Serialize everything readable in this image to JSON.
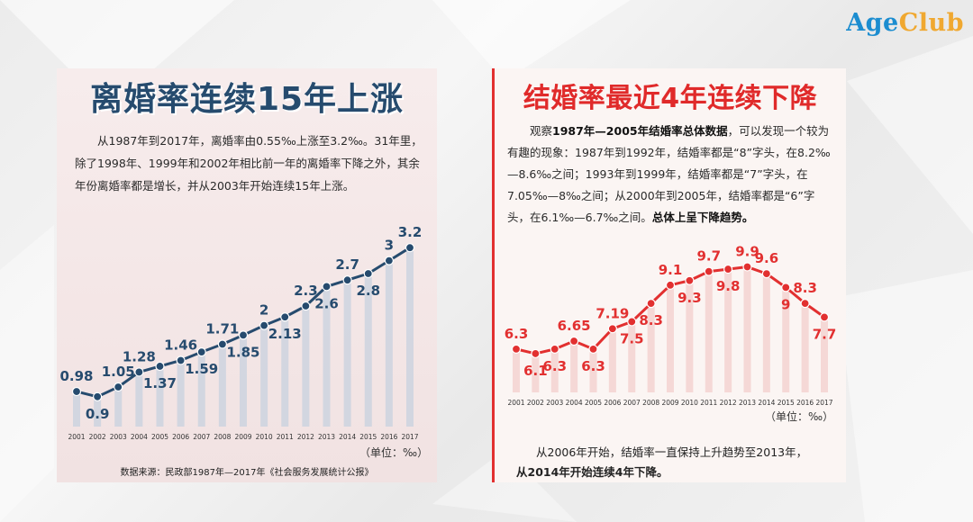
{
  "brand": {
    "part1": "Age",
    "part2": "Club",
    "color1": "#1c8dd0",
    "color2": "#f0a830"
  },
  "left": {
    "title": "离婚率连续15年上涨",
    "paragraph": "从1987年到2017年，离婚率由0.55‰上涨至3.2‰。31年里，除了1998年、1999年和2002年相比前一年的离婚率下降之外，其余年份离婚率都是增长，并从2003年开始连续15年上涨。",
    "unit": "（单位：‰）",
    "source": "数据来源：民政部1987年—2017年《社会服务发展统计公报》"
  },
  "right": {
    "title": "结婚率最近4年连续下降",
    "para_pre": "观察",
    "para_emph1": "1987年—2005年结婚率总体数据",
    "para_mid": "，可以发现一个较为有趣的现象：1987年到1992年，结婚率都是“8”字头，在8.2‰—8.6‰之间；1993年到1999年，结婚率都是“7”字头，在7.05‰—8‰之间；从2000年到2005年，结婚率都是“6”字头，在6.1‰—6.7‰之间。",
    "para_emph2": "总体上呈下降趋势。",
    "unit": "（单位：‰）",
    "foot1": "从2006年开始，结婚率一直保持上升趋势至2013年，",
    "foot2": "从2014年开始连续4年下降。"
  },
  "chart_data": [
    {
      "type": "line",
      "title": "离婚率连续15年上涨",
      "ylabel": "单位：‰",
      "x": [
        "2001",
        "2002",
        "2003",
        "2004",
        "2005",
        "2006",
        "2007",
        "2008",
        "2009",
        "2010",
        "2011",
        "2012",
        "2013",
        "2014",
        "2015",
        "2016",
        "2017"
      ],
      "series": [
        {
          "values": [
            0.98,
            0.9,
            1.05,
            1.28,
            1.37,
            1.46,
            1.59,
            1.71,
            1.85,
            2.0,
            2.13,
            2.3,
            2.6,
            2.7,
            2.8,
            3.0,
            3.2
          ]
        }
      ],
      "labels": [
        "0.98",
        "0.9",
        "1.05",
        "1.28",
        "1.37",
        "1.46",
        "1.59",
        "1.71",
        "1.85",
        "2",
        "2.13",
        "2.3",
        "2.6",
        "2.7",
        "2.8",
        "3",
        "3.2"
      ],
      "ylim": [
        0.8,
        3.3
      ],
      "color": "#264b6e",
      "bar_color": "#cdd3df"
    },
    {
      "type": "line",
      "title": "结婚率最近4年连续下降",
      "ylabel": "单位：‰",
      "x": [
        "2001",
        "2002",
        "2003",
        "2004",
        "2005",
        "2006",
        "2007",
        "2008",
        "2009",
        "2010",
        "2011",
        "2012",
        "2013",
        "2014",
        "2015",
        "2016",
        "2017"
      ],
      "series": [
        {
          "values": [
            6.3,
            6.1,
            6.3,
            6.65,
            6.3,
            7.19,
            7.5,
            8.3,
            9.1,
            9.3,
            9.7,
            9.8,
            9.9,
            9.6,
            9.0,
            8.3,
            7.7
          ]
        }
      ],
      "labels": [
        "6.3",
        "6.1",
        "6.3",
        "6.65",
        "6.3",
        "7.19",
        "7.5",
        "8.3",
        "9.1",
        "9.3",
        "9.7",
        "9.8",
        "9.9",
        "9.6",
        "9",
        "8.3",
        "7.7"
      ],
      "ylim": [
        5.9,
        10.0
      ],
      "color": "#e23030",
      "bar_color": "#f3d2d0"
    }
  ]
}
